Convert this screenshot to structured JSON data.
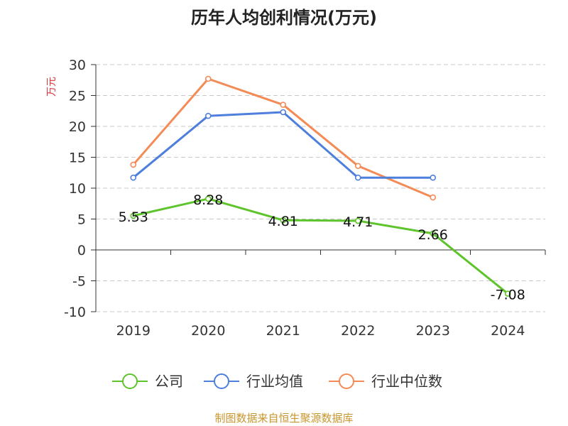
{
  "chart_data": {
    "type": "line",
    "title": "历年人均创利情况(万元)",
    "ylabel": "万元",
    "categories": [
      "2019",
      "2020",
      "2021",
      "2022",
      "2023",
      "2024"
    ],
    "yticks": [
      "30",
      "25",
      "20",
      "15",
      "10",
      "5",
      "0",
      "-5",
      "-10"
    ],
    "ylim": [
      -10,
      30
    ],
    "grid": true,
    "legend_position": "bottom",
    "series": [
      {
        "name": "公司",
        "color": "#5ec42b",
        "values": [
          5.53,
          8.28,
          4.81,
          4.71,
          2.66,
          -7.08
        ],
        "labels": [
          "5.53",
          "8.28",
          "4.81",
          "4.71",
          "2.66",
          "-7.08"
        ]
      },
      {
        "name": "行业均值",
        "color": "#4f7fdc",
        "values": [
          11.7,
          21.7,
          22.3,
          11.7,
          11.7,
          null
        ]
      },
      {
        "name": "行业中位数",
        "color": "#f48a55",
        "values": [
          13.8,
          27.7,
          23.5,
          13.6,
          8.5,
          null
        ]
      }
    ],
    "ylabel_color": "#e0353b"
  },
  "source": {
    "text": "制图数据来自恒生聚源数据库",
    "color": "#c8962d"
  }
}
